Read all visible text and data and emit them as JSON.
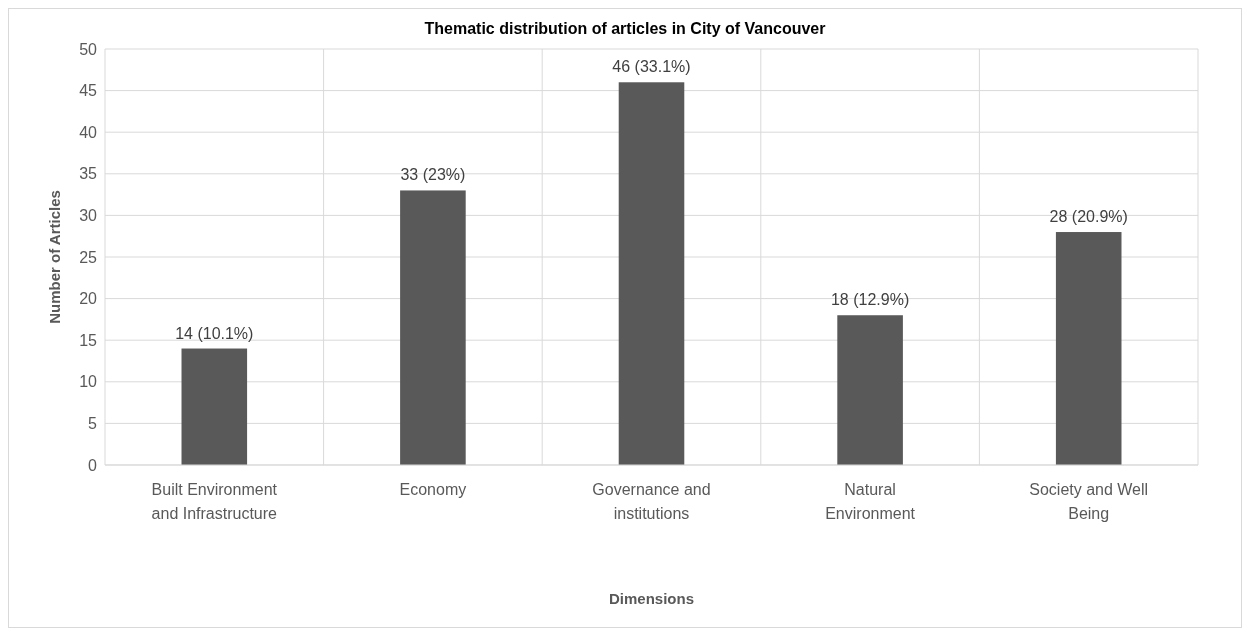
{
  "chart_data": {
    "type": "bar",
    "title": "Thematic distribution of articles in City of Vancouver",
    "xlabel": "Dimensions",
    "ylabel": "Number of Articles",
    "categories": [
      "Built Environment and Infrastructure",
      "Economy",
      "Governance and institutions",
      "Natural Environment",
      "Society and Well Being"
    ],
    "values": [
      14,
      33,
      46,
      18,
      28
    ],
    "value_labels": [
      "14 (10.1%)",
      "33 (23%)",
      "46 (33.1%)",
      "18 (12.9%)",
      "28 (20.9%)"
    ],
    "color": "#595959",
    "ylim": [
      0,
      50
    ],
    "yticks": [
      0,
      5,
      10,
      15,
      20,
      25,
      30,
      35,
      40,
      45,
      50
    ],
    "grid": true
  }
}
